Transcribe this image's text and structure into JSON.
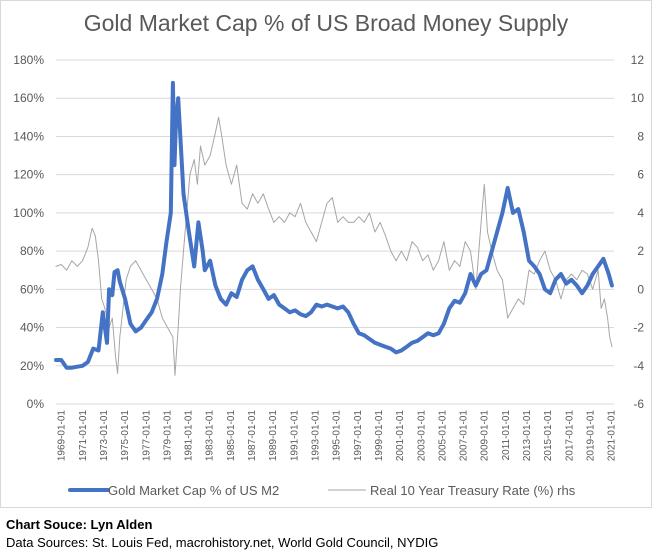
{
  "chart_data": {
    "type": "line",
    "title": "Gold Market Cap % of US Broad Money Supply",
    "y_left": {
      "ticks": [
        "0%",
        "20%",
        "40%",
        "60%",
        "80%",
        "100%",
        "120%",
        "140%",
        "160%",
        "180%"
      ],
      "min": 0,
      "max": 180
    },
    "y_right": {
      "ticks": [
        "-6",
        "-4",
        "-2",
        "0",
        "2",
        "4",
        "6",
        "8",
        "10",
        "12"
      ],
      "min": -6,
      "max": 12
    },
    "x_ticks": [
      "1969-01-01",
      "1971-01-01",
      "1973-01-01",
      "1975-01-01",
      "1977-01-01",
      "1979-01-01",
      "1981-01-01",
      "1983-01-01",
      "1985-01-01",
      "1987-01-01",
      "1989-01-01",
      "1991-01-01",
      "1993-01-01",
      "1995-01-01",
      "1997-01-01",
      "1999-01-01",
      "2001-01-01",
      "2003-01-01",
      "2005-01-01",
      "2007-01-01",
      "2009-01-01",
      "2011-01-01",
      "2013-01-01",
      "2015-01-01",
      "2017-01-01",
      "2019-01-01",
      "2021-01-01"
    ],
    "x_range": [
      1969.0,
      2021.5
    ],
    "legend_position": "bottom",
    "series": [
      {
        "name": "Gold Market Cap % of US M2",
        "axis": "left",
        "color": "#4472c4",
        "points": [
          [
            1969.0,
            23
          ],
          [
            1969.5,
            23
          ],
          [
            1970.0,
            19
          ],
          [
            1970.5,
            19
          ],
          [
            1971.0,
            19.5
          ],
          [
            1971.5,
            20
          ],
          [
            1972.0,
            22
          ],
          [
            1972.5,
            29
          ],
          [
            1973.0,
            28
          ],
          [
            1973.4,
            48
          ],
          [
            1973.8,
            32
          ],
          [
            1974.0,
            60
          ],
          [
            1974.3,
            57
          ],
          [
            1974.5,
            69
          ],
          [
            1974.8,
            70
          ],
          [
            1975.0,
            64
          ],
          [
            1975.5,
            55
          ],
          [
            1976.0,
            42
          ],
          [
            1976.5,
            38
          ],
          [
            1977.0,
            40
          ],
          [
            1977.5,
            44
          ],
          [
            1978.0,
            48
          ],
          [
            1978.5,
            55
          ],
          [
            1979.0,
            68
          ],
          [
            1979.4,
            85
          ],
          [
            1979.8,
            100
          ],
          [
            1980.0,
            168
          ],
          [
            1980.15,
            125
          ],
          [
            1980.3,
            150
          ],
          [
            1980.5,
            160
          ],
          [
            1980.8,
            130
          ],
          [
            1981.0,
            110
          ],
          [
            1981.5,
            90
          ],
          [
            1982.0,
            72
          ],
          [
            1982.4,
            95
          ],
          [
            1982.8,
            80
          ],
          [
            1983.0,
            70
          ],
          [
            1983.5,
            75
          ],
          [
            1984.0,
            62
          ],
          [
            1984.5,
            55
          ],
          [
            1985.0,
            52
          ],
          [
            1985.5,
            58
          ],
          [
            1986.0,
            56
          ],
          [
            1986.5,
            65
          ],
          [
            1987.0,
            70
          ],
          [
            1987.5,
            72
          ],
          [
            1988.0,
            65
          ],
          [
            1988.5,
            60
          ],
          [
            1989.0,
            55
          ],
          [
            1989.5,
            57
          ],
          [
            1990.0,
            52
          ],
          [
            1990.5,
            50
          ],
          [
            1991.0,
            48
          ],
          [
            1991.5,
            49
          ],
          [
            1992.0,
            47
          ],
          [
            1992.5,
            46
          ],
          [
            1993.0,
            48
          ],
          [
            1993.5,
            52
          ],
          [
            1994.0,
            51
          ],
          [
            1994.5,
            52
          ],
          [
            1995.0,
            51
          ],
          [
            1995.5,
            50
          ],
          [
            1996.0,
            51
          ],
          [
            1996.5,
            48
          ],
          [
            1997.0,
            42
          ],
          [
            1997.5,
            37
          ],
          [
            1998.0,
            36
          ],
          [
            1998.5,
            34
          ],
          [
            1999.0,
            32
          ],
          [
            1999.5,
            31
          ],
          [
            2000.0,
            30
          ],
          [
            2000.5,
            29
          ],
          [
            2001.0,
            27
          ],
          [
            2001.5,
            28
          ],
          [
            2002.0,
            30
          ],
          [
            2002.5,
            32
          ],
          [
            2003.0,
            33
          ],
          [
            2003.5,
            35
          ],
          [
            2004.0,
            37
          ],
          [
            2004.5,
            36
          ],
          [
            2005.0,
            37
          ],
          [
            2005.5,
            42
          ],
          [
            2006.0,
            50
          ],
          [
            2006.5,
            54
          ],
          [
            2007.0,
            53
          ],
          [
            2007.5,
            58
          ],
          [
            2008.0,
            68
          ],
          [
            2008.5,
            62
          ],
          [
            2009.0,
            68
          ],
          [
            2009.5,
            70
          ],
          [
            2010.0,
            80
          ],
          [
            2010.5,
            90
          ],
          [
            2011.0,
            100
          ],
          [
            2011.5,
            113
          ],
          [
            2012.0,
            100
          ],
          [
            2012.5,
            102
          ],
          [
            2013.0,
            90
          ],
          [
            2013.5,
            75
          ],
          [
            2014.0,
            72
          ],
          [
            2014.5,
            68
          ],
          [
            2015.0,
            60
          ],
          [
            2015.5,
            58
          ],
          [
            2016.0,
            65
          ],
          [
            2016.5,
            68
          ],
          [
            2017.0,
            63
          ],
          [
            2017.5,
            65
          ],
          [
            2018.0,
            62
          ],
          [
            2018.5,
            58
          ],
          [
            2019.0,
            62
          ],
          [
            2019.5,
            68
          ],
          [
            2020.0,
            72
          ],
          [
            2020.5,
            76
          ],
          [
            2021.0,
            68
          ],
          [
            2021.3,
            62
          ]
        ]
      },
      {
        "name": "Real 10 Year Treasury Rate (%) rhs",
        "axis": "right",
        "color": "#a6a6a6",
        "points": [
          [
            1969.0,
            1.2
          ],
          [
            1969.5,
            1.3
          ],
          [
            1970.0,
            1.0
          ],
          [
            1970.5,
            1.5
          ],
          [
            1971.0,
            1.2
          ],
          [
            1971.5,
            1.5
          ],
          [
            1972.0,
            2.2
          ],
          [
            1972.4,
            3.2
          ],
          [
            1972.7,
            2.8
          ],
          [
            1973.0,
            1.5
          ],
          [
            1973.3,
            -0.5
          ],
          [
            1973.6,
            -1.0
          ],
          [
            1974.0,
            -2.0
          ],
          [
            1974.3,
            -1.5
          ],
          [
            1974.6,
            -3.5
          ],
          [
            1974.8,
            -4.4
          ],
          [
            1975.0,
            -2.5
          ],
          [
            1975.3,
            -1.0
          ],
          [
            1975.6,
            0.5
          ],
          [
            1976.0,
            1.2
          ],
          [
            1976.5,
            1.5
          ],
          [
            1977.0,
            1.0
          ],
          [
            1977.5,
            0.5
          ],
          [
            1978.0,
            0.0
          ],
          [
            1978.5,
            -0.5
          ],
          [
            1979.0,
            -1.5
          ],
          [
            1979.5,
            -2.0
          ],
          [
            1980.0,
            -2.5
          ],
          [
            1980.2,
            -4.5
          ],
          [
            1980.5,
            -2.0
          ],
          [
            1980.7,
            0.0
          ],
          [
            1981.0,
            2.0
          ],
          [
            1981.3,
            4.0
          ],
          [
            1981.6,
            6.0
          ],
          [
            1982.0,
            6.8
          ],
          [
            1982.3,
            5.5
          ],
          [
            1982.6,
            7.5
          ],
          [
            1983.0,
            6.5
          ],
          [
            1983.5,
            7.0
          ],
          [
            1984.0,
            8.2
          ],
          [
            1984.3,
            9.0
          ],
          [
            1984.6,
            8.0
          ],
          [
            1985.0,
            6.5
          ],
          [
            1985.5,
            5.5
          ],
          [
            1986.0,
            6.5
          ],
          [
            1986.5,
            4.5
          ],
          [
            1987.0,
            4.2
          ],
          [
            1987.5,
            5.0
          ],
          [
            1988.0,
            4.5
          ],
          [
            1988.5,
            5.0
          ],
          [
            1989.0,
            4.2
          ],
          [
            1989.5,
            3.5
          ],
          [
            1990.0,
            3.8
          ],
          [
            1990.5,
            3.5
          ],
          [
            1991.0,
            4.0
          ],
          [
            1991.5,
            3.8
          ],
          [
            1992.0,
            4.5
          ],
          [
            1992.5,
            3.5
          ],
          [
            1993.0,
            3.0
          ],
          [
            1993.5,
            2.5
          ],
          [
            1994.0,
            3.5
          ],
          [
            1994.5,
            4.5
          ],
          [
            1995.0,
            4.8
          ],
          [
            1995.5,
            3.5
          ],
          [
            1996.0,
            3.8
          ],
          [
            1996.5,
            3.5
          ],
          [
            1997.0,
            3.5
          ],
          [
            1997.5,
            3.8
          ],
          [
            1998.0,
            3.5
          ],
          [
            1998.5,
            4.0
          ],
          [
            1999.0,
            3.0
          ],
          [
            1999.5,
            3.5
          ],
          [
            2000.0,
            2.8
          ],
          [
            2000.5,
            2.0
          ],
          [
            2001.0,
            1.5
          ],
          [
            2001.5,
            2.0
          ],
          [
            2002.0,
            1.5
          ],
          [
            2002.5,
            2.5
          ],
          [
            2003.0,
            2.2
          ],
          [
            2003.5,
            1.5
          ],
          [
            2004.0,
            1.8
          ],
          [
            2004.5,
            1.0
          ],
          [
            2005.0,
            1.5
          ],
          [
            2005.5,
            2.5
          ],
          [
            2006.0,
            1.0
          ],
          [
            2006.5,
            1.5
          ],
          [
            2007.0,
            1.2
          ],
          [
            2007.5,
            2.5
          ],
          [
            2008.0,
            2.0
          ],
          [
            2008.5,
            0.0
          ],
          [
            2009.0,
            3.5
          ],
          [
            2009.3,
            5.5
          ],
          [
            2009.6,
            3.0
          ],
          [
            2010.0,
            2.0
          ],
          [
            2010.5,
            1.0
          ],
          [
            2011.0,
            0.5
          ],
          [
            2011.5,
            -1.5
          ],
          [
            2012.0,
            -1.0
          ],
          [
            2012.5,
            -0.5
          ],
          [
            2013.0,
            -0.8
          ],
          [
            2013.5,
            1.0
          ],
          [
            2014.0,
            0.8
          ],
          [
            2014.5,
            1.5
          ],
          [
            2015.0,
            2.0
          ],
          [
            2015.5,
            1.0
          ],
          [
            2016.0,
            0.5
          ],
          [
            2016.5,
            -0.5
          ],
          [
            2017.0,
            0.5
          ],
          [
            2017.5,
            0.8
          ],
          [
            2018.0,
            0.5
          ],
          [
            2018.5,
            1.0
          ],
          [
            2019.0,
            0.8
          ],
          [
            2019.5,
            0.0
          ],
          [
            2020.0,
            1.0
          ],
          [
            2020.3,
            -1.0
          ],
          [
            2020.6,
            -0.5
          ],
          [
            2020.9,
            -1.5
          ],
          [
            2021.1,
            -2.5
          ],
          [
            2021.3,
            -3.0
          ]
        ]
      }
    ]
  },
  "footer": {
    "source_label": "Chart Souce: Lyn Alden",
    "data_sources": "Data Sources: St. Louis Fed, macrohistory.net, World Gold Council, NYDIG"
  }
}
